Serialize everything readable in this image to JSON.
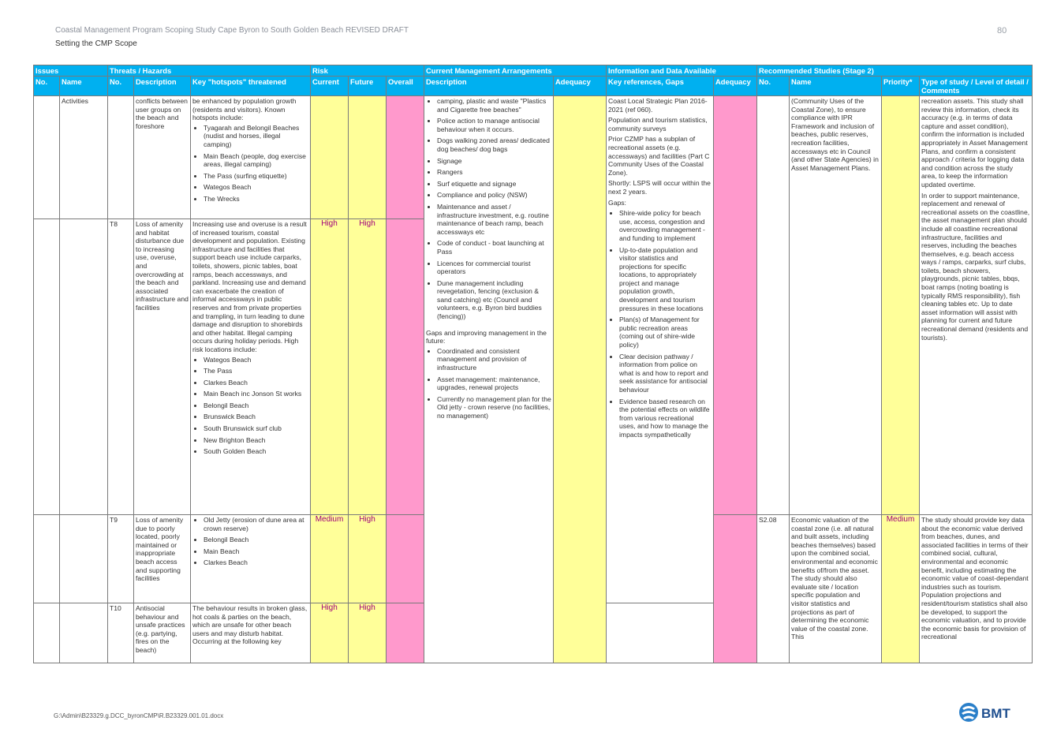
{
  "header": {
    "title": "Coastal Management Program Scoping Study Cape Byron to South Golden Beach REVISED DRAFT",
    "subtitle": "Setting the CMP Scope",
    "page_number": "80"
  },
  "group_headers": [
    "Issues",
    "Threats / Hazards",
    "Risk",
    "Current Management Arrangements",
    "Information and Data Available",
    "Recommended Studies (Stage 2)"
  ],
  "column_headers": [
    "No.",
    "Name",
    "No.",
    "Description",
    "Key \"hotspots\" threatened",
    "Current",
    "Future",
    "Overall",
    "Description",
    "Adequacy",
    "Key references, Gaps",
    "Adequacy",
    "No.",
    "Name",
    "Priority*",
    "Type of study / Level of detail / Comments"
  ],
  "row_activities": {
    "issue_name": "Activities",
    "threat_desc": "conflicts between user groups on the beach and foreshore",
    "hotspots_intro": "be enhanced by population growth (residents and visitors). Known hotspots include:",
    "hotspots_items": [
      "Tyagarah and Belongil Beaches (nudist and horses, illegal camping)",
      "Main Beach (people, dog exercise areas, illegal camping)",
      "The Pass (surfing etiquette)",
      "Wategos Beach",
      "The Wrecks"
    ]
  },
  "row_t8": {
    "threat_no": "T8",
    "threat_desc": "Loss of amenity and habitat disturbance due to increasing use, overuse, and overcrowding at the beach and associated infrastructure and facilities",
    "hotspots_intro": "Increasing use and overuse is a result of increased tourism, coastal development and population. Existing infrastructure and facilities that support beach use include carparks, toilets, showers, picnic tables, boat ramps, beach accessways, and parkland. Increasing use and demand can exacerbate the creation of informal accessways in public reserves and from private properties and trampling, in turn leading to dune damage and disruption to shorebirds and other habitat. Illegal camping occurs during holiday periods. High risk locations include:",
    "hotspots_items": [
      "Wategos Beach",
      "The Pass",
      "Clarkes Beach",
      "Main Beach inc Jonson St works",
      "Belongil Beach",
      "Brunswick Beach",
      "South Brunswick surf club",
      "New Brighton Beach",
      "South Golden Beach"
    ],
    "risk_current": "High",
    "risk_future": "High"
  },
  "row_t9": {
    "threat_no": "T9",
    "threat_desc": "Loss of amenity due to poorly located, poorly maintained or inappropriate beach access and supporting facilities",
    "hotspots_items": [
      "Old Jetty (erosion of dune area at crown reserve)",
      "Belongil Beach",
      "Main Beach",
      "Clarkes Beach"
    ],
    "risk_current": "Medium",
    "risk_future": "High"
  },
  "row_t10": {
    "threat_no": "T10",
    "threat_desc": "Antisocial behaviour and unsafe practices (e.g. partying, fires on the beach)",
    "hotspots_intro": "The behaviour results in broken glass, hot coals & parties on the beach, which are unsafe for other beach users and may disturb habitat.",
    "hotspots_tail": "Occurring at the following key",
    "risk_current": "High",
    "risk_future": "High"
  },
  "management": {
    "items_top": [
      "camping, plastic and waste \"Plastics and Cigarette free beaches\"",
      "Police action to manage antisocial behaviour when it occurs.",
      "Dogs walking zoned areas/ dedicated dog beaches/ dog bags",
      "Signage",
      "Rangers",
      "Surf etiquette and signage",
      "Compliance and policy (NSW)",
      "Maintenance and asset / infrastructure investment, e.g. routine maintenance of beach ramp, beach accessways etc",
      "Code of conduct - boat launching at Pass",
      "Licences for commercial tourist operators",
      "Dune management including revegetation, fencing (exclusion & sand catching) etc (Council and volunteers, e.g. Byron bird buddies (fencing))"
    ],
    "gaps_label": "Gaps and improving management in the future:",
    "items_gaps": [
      "Coordinated and consistent management and provision of infrastructure",
      "Asset management: maintenance, upgrades, renewal projects",
      "Currently no management plan for the Old jetty - crown reserve (no facilities, no management)"
    ]
  },
  "information": {
    "paragraphs": [
      "Coast Local Strategic Plan 2016-2021 (ref 060).",
      "Population and tourism statistics, community surveys",
      "Prior CZMP has a subplan of recreational assets (e.g. accessways) and facilities (Part C Community Uses of the Coastal Zone).",
      "Shortly: LSPS will occur within the next 2 years."
    ],
    "gaps_label": "Gaps:",
    "gaps": [
      "Shire-wide policy for beach use, access, congestion and overcrowding management - and funding to implement",
      "Up-to-date population and visitor statistics and projections for specific locations, to appropriately project and manage population growth, development and tourism pressures in these locations",
      "Plan(s) of Management for public recreation areas (coming out of shire-wide policy)",
      "Clear decision pathway / information from police on what is and how to report and seek assistance for antisocial behaviour",
      "Evidence based research on the potential effects on wildlife from various recreational uses, and how to manage the impacts sympathetically"
    ]
  },
  "study_top": {
    "name": "(Community Uses of the Coastal Zone), to ensure compliance with IPR Framework and inclusion of beaches, public reserves, recreation facilities, accessways etc in Council (and other State Agencies) in Asset Management Plans.",
    "comments": "recreation assets. This study shall review this information, check its accuracy (e.g. in terms of data capture and asset condition), confirm the information is included appropriately in Asset Management Plans, and confirm a consistent approach / criteria for logging data and condition across the study area, to keep the information updated overtime.",
    "comments2": "In order to support maintenance, replacement and renewal of recreational assets on the coastline, the asset management plan should include all coastline recreational infrastructure, facilities and reserves, including the beaches themselves, e.g. beach access ways / ramps, carparks, surf clubs, toilets, beach showers, playgrounds, picnic tables, bbqs, boat ramps (noting boating is typically RMS responsibility), fish cleaning tables etc. Up to date asset information will assist with planning for current and future recreational demand (residents and tourists)."
  },
  "study_s208": {
    "no": "S2.08",
    "name": "Economic valuation of the coastal zone (i.e. all natural and built assets, including beaches themselves) based upon the combined social, environmental and economic benefits of/from the asset. The study should also evaluate site / location specific population and visitor statistics and projections as part of determining the economic value of the coastal zone. This",
    "priority": "Medium",
    "comments": "The study should provide key data about the economic value derived from beaches, dunes, and associated facilities in terms of their combined social, cultural, environmental and economic benefit, including estimating the economic value of coast-dependant industries such as tourism. Population projections and resident/tourism statistics shall also be developed, to support the economic valuation, and to provide the economic basis for provision of recreational"
  },
  "footer": {
    "path": "G:\\Admin\\B23329.g.DCC_byronCMP\\R.B23329.001.01.docx"
  },
  "logo": {
    "text": "BMT",
    "color": "#1f6fb2"
  },
  "colors": {
    "header_bg": "#00b0f0",
    "risk_yellow": "#ffff99",
    "risk_pink": "#ff99cc",
    "risk_text": "#a0007a"
  }
}
